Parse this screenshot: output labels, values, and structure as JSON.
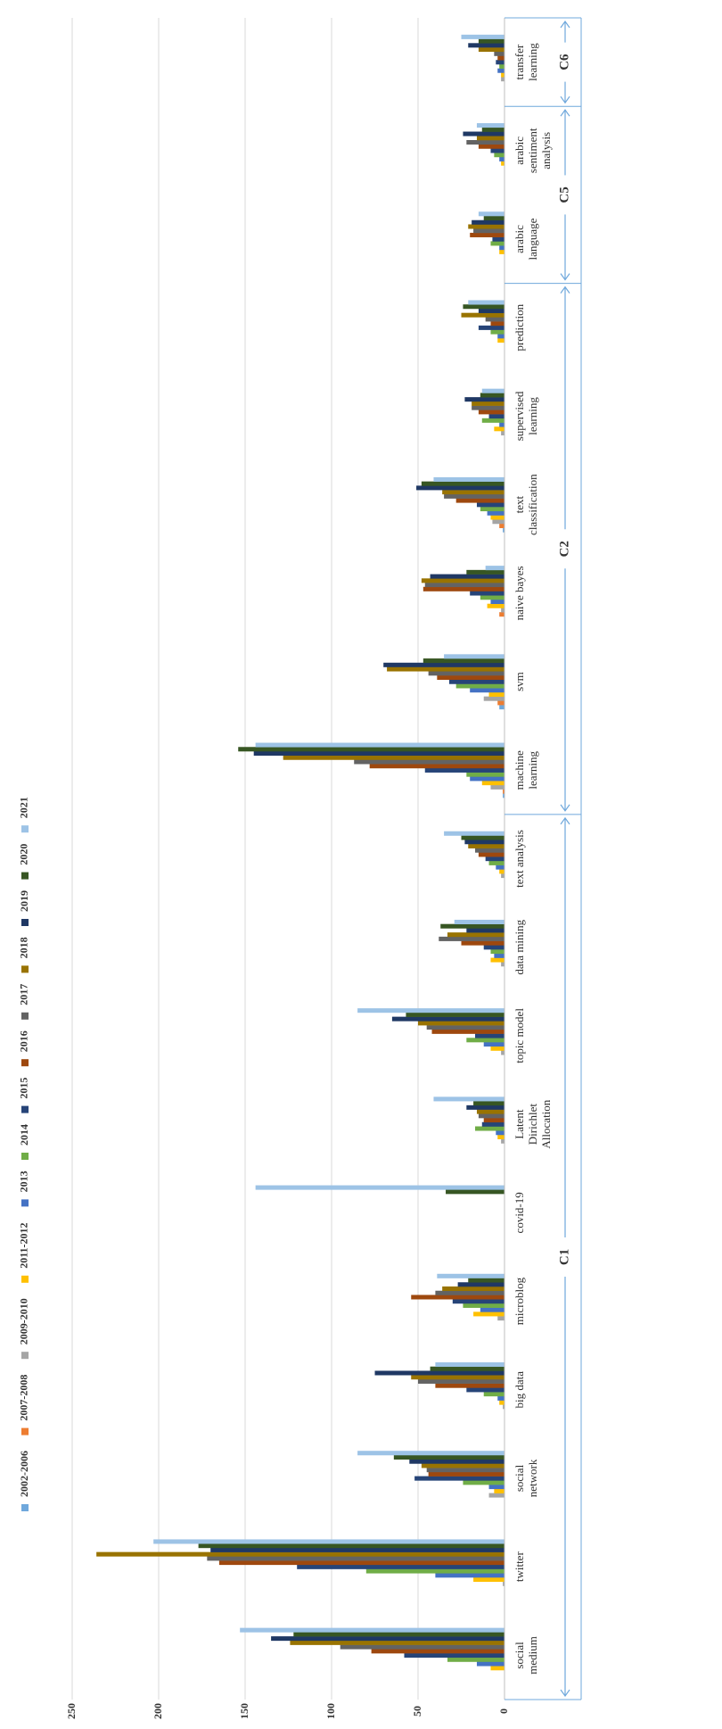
{
  "chart_data": {
    "type": "bar",
    "orientation": "horizontal",
    "categories": [
      "social medium",
      "twitter",
      "social network",
      "big data",
      "microblog",
      "covid-19",
      "Latent Dirichlet Allocation",
      "topic model",
      "data mining",
      "text analysis",
      "machine learning",
      "svm",
      "naive bayes",
      "text classification",
      "supervised learning",
      "prediction",
      "arabic language",
      "arabic sentiment analysis",
      "transfer learning"
    ],
    "series": [
      {
        "name": "2002-2006",
        "color": "#6fa8dc",
        "values": [
          0,
          0,
          0,
          0,
          0,
          0,
          0,
          0,
          0,
          0,
          1,
          3,
          0,
          1,
          0,
          0,
          0,
          0,
          0
        ]
      },
      {
        "name": "2007-2008",
        "color": "#ed7d31",
        "values": [
          0,
          0,
          0,
          0,
          0,
          0,
          0,
          0,
          0,
          0,
          1,
          4,
          3,
          3,
          0,
          0,
          0,
          0,
          0
        ]
      },
      {
        "name": "2009-2010",
        "color": "#a5a5a5",
        "values": [
          0,
          1,
          9,
          1,
          4,
          0,
          2,
          2,
          2,
          2,
          8,
          12,
          2,
          7,
          2,
          0,
          0,
          0,
          2
        ]
      },
      {
        "name": "2011-2012",
        "color": "#ffc000",
        "values": [
          8,
          18,
          6,
          3,
          18,
          0,
          4,
          8,
          8,
          3,
          13,
          9,
          10,
          8,
          6,
          4,
          3,
          2,
          2
        ]
      },
      {
        "name": "2013",
        "color": "#4472c4",
        "values": [
          16,
          40,
          9,
          4,
          14,
          0,
          5,
          12,
          6,
          5,
          20,
          20,
          8,
          10,
          3,
          4,
          3,
          3,
          4
        ]
      },
      {
        "name": "2014",
        "color": "#70ad47",
        "values": [
          33,
          80,
          24,
          12,
          24,
          0,
          17,
          22,
          8,
          9,
          22,
          28,
          14,
          14,
          13,
          8,
          8,
          6,
          3
        ]
      },
      {
        "name": "2015",
        "color": "#264478",
        "values": [
          58,
          120,
          52,
          22,
          30,
          0,
          13,
          17,
          12,
          11,
          46,
          32,
          20,
          16,
          9,
          15,
          7,
          8,
          5
        ]
      },
      {
        "name": "2016",
        "color": "#9e480e",
        "values": [
          77,
          165,
          44,
          40,
          54,
          0,
          12,
          42,
          25,
          15,
          78,
          39,
          47,
          28,
          15,
          8,
          20,
          15,
          4
        ]
      },
      {
        "name": "2017",
        "color": "#636363",
        "values": [
          95,
          172,
          45,
          50,
          40,
          0,
          15,
          45,
          38,
          17,
          87,
          44,
          46,
          35,
          19,
          11,
          18,
          22,
          6
        ]
      },
      {
        "name": "2018",
        "color": "#997300",
        "values": [
          124,
          236,
          48,
          54,
          36,
          0,
          16,
          50,
          33,
          21,
          128,
          68,
          48,
          36,
          19,
          25,
          21,
          16,
          15
        ]
      },
      {
        "name": "2019",
        "color": "#1f3864",
        "values": [
          135,
          170,
          55,
          75,
          27,
          0,
          22,
          65,
          22,
          23,
          145,
          70,
          43,
          51,
          23,
          15,
          19,
          24,
          21
        ]
      },
      {
        "name": "2020",
        "color": "#375623",
        "values": [
          122,
          177,
          64,
          43,
          21,
          34,
          18,
          57,
          37,
          25,
          154,
          47,
          22,
          48,
          14,
          24,
          12,
          13,
          15
        ]
      },
      {
        "name": "2021",
        "color": "#9dc3e6",
        "values": [
          153,
          203,
          85,
          40,
          39,
          144,
          41,
          85,
          29,
          35,
          144,
          35,
          11,
          41,
          13,
          21,
          15,
          16,
          25
        ]
      }
    ],
    "xlim": [
      0,
      250
    ],
    "ticks": [
      "0",
      "50",
      "100",
      "150",
      "200",
      "250"
    ],
    "category_labels": [
      [
        "social",
        "medium"
      ],
      [
        "twitter"
      ],
      [
        "social",
        "network"
      ],
      [
        "big data"
      ],
      [
        "microblog"
      ],
      [
        "covid-19"
      ],
      [
        "Latent",
        "Dirichlet",
        "Allocation"
      ],
      [
        "topic model"
      ],
      [
        "data mining"
      ],
      [
        "text analysis"
      ],
      [
        "machine",
        "learning"
      ],
      [
        "svm"
      ],
      [
        "naive bayes"
      ],
      [
        "text",
        "classification"
      ],
      [
        "supervised",
        "learning"
      ],
      [
        "prediction"
      ],
      [
        "arabic",
        "language"
      ],
      [
        "arabic",
        "sentiment",
        "analysis"
      ],
      [
        "transfer",
        "learning"
      ]
    ],
    "clusters": [
      {
        "label": "C1",
        "from": 0,
        "to": 9
      },
      {
        "label": "C2",
        "from": 10,
        "to": 15
      },
      {
        "label": "C5",
        "from": 16,
        "to": 17
      },
      {
        "label": "C6",
        "from": 18,
        "to": 18
      }
    ],
    "grid": true,
    "legend_position": "top"
  }
}
